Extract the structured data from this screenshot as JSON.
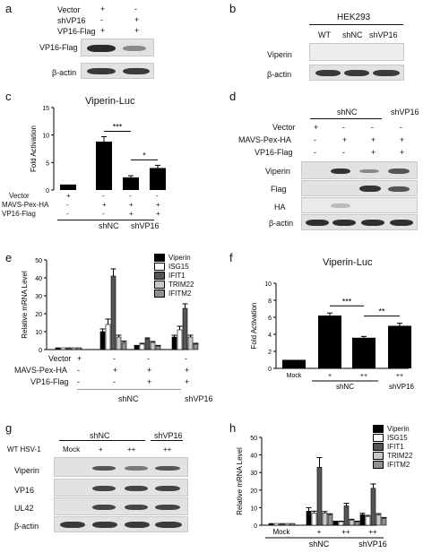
{
  "panels": {
    "a": {
      "letter": "a",
      "rows": [
        {
          "label": "Vector",
          "signs": [
            "+",
            "-"
          ]
        },
        {
          "label": "shVP16",
          "signs": [
            "-",
            "+"
          ]
        },
        {
          "label": "VP16-Flag",
          "signs": [
            "+",
            "+"
          ]
        }
      ],
      "blots": [
        "VP16-Flag",
        "β-actin"
      ]
    },
    "b": {
      "letter": "b",
      "cell_line": "HEK293",
      "lanes": [
        "WT",
        "shNC",
        "shVP16"
      ],
      "blots": [
        "Viperin",
        "β-actin"
      ]
    },
    "c": {
      "letter": "c",
      "title": "Viperin-Luc",
      "ylabel": "Fold Activation",
      "yticks": [
        "0",
        "5",
        "10",
        "15"
      ],
      "rows": [
        {
          "label": "Vector",
          "signs": [
            "+",
            "-",
            "-",
            "-"
          ]
        },
        {
          "label": "MAVS-Pex-HA",
          "signs": [
            "-",
            "+",
            "+",
            "+"
          ]
        },
        {
          "label": "VP16-Flag",
          "signs": [
            "-",
            "-",
            "+",
            "+"
          ]
        }
      ],
      "groups": [
        "shNC",
        "shVP16"
      ],
      "sig": [
        "***",
        "*"
      ]
    },
    "d": {
      "letter": "d",
      "groups": [
        "shNC",
        "shVP16"
      ],
      "rows": [
        {
          "label": "Vector",
          "signs": [
            "+",
            "-",
            "-",
            "-"
          ]
        },
        {
          "label": "MAVS-Pex-HA",
          "signs": [
            "-",
            "+",
            "+",
            "+"
          ]
        },
        {
          "label": "VP16-Flag",
          "signs": [
            "-",
            "-",
            "+",
            "+"
          ]
        }
      ],
      "blots": [
        "Viperin",
        "Flag",
        "HA",
        "β-actin"
      ]
    },
    "e": {
      "letter": "e",
      "ylabel": "Relative mRNA Level",
      "yticks": [
        "0",
        "10",
        "20",
        "30",
        "40",
        "50"
      ],
      "rows": [
        {
          "label": "Vector",
          "signs": [
            "+",
            "-",
            "-",
            "-"
          ]
        },
        {
          "label": "MAVS-Pex-HA",
          "signs": [
            "-",
            "+",
            "+",
            "+"
          ]
        },
        {
          "label": "VP16-Flag",
          "signs": [
            "-",
            "-",
            "+",
            "+"
          ]
        }
      ],
      "groups": [
        "shNC",
        "shVP16"
      ]
    },
    "f": {
      "letter": "f",
      "title": "Viperin-Luc",
      "ylabel": "Fold Activation",
      "yticks": [
        "0",
        "2",
        "4",
        "6",
        "8",
        "10"
      ],
      "sig": [
        "***",
        "**"
      ]
    },
    "g": {
      "letter": "g",
      "row_label": "WT HSV-1",
      "groups": [
        "shNC",
        "shVP16"
      ],
      "lanes": [
        "Mock",
        "+",
        "++",
        "++"
      ],
      "blots": [
        "Viperin",
        "VP16",
        "UL42",
        "β-actin"
      ]
    },
    "h": {
      "letter": "h",
      "ylabel": "Relative mRNA Level",
      "yticks": [
        "0",
        "10",
        "20",
        "30",
        "40",
        "50"
      ],
      "xlabels": [
        "Mock",
        "+",
        "++",
        "++"
      ],
      "groups": [
        "shNC",
        "shVP16"
      ]
    }
  },
  "chart_data": [
    {
      "id": "c",
      "type": "bar",
      "title": "Viperin-Luc",
      "ylabel": "Fold Activation",
      "ylim": [
        0,
        15
      ],
      "values": [
        1,
        8.8,
        2.3,
        4.0
      ],
      "errors": [
        0,
        0.9,
        0.3,
        0.5
      ],
      "color": "#000000"
    },
    {
      "id": "e",
      "type": "bar",
      "ylabel": "Relative mRNA Level",
      "ylim": [
        0,
        50
      ],
      "legend": [
        "Viperin",
        "ISG15",
        "IFIT1",
        "TRIM22",
        "IFITM2"
      ],
      "colors": [
        "#000000",
        "#ffffff",
        "#555555",
        "#c8c8c8",
        "#909090"
      ],
      "series": [
        {
          "name": "Viperin",
          "values": [
            1,
            10,
            2,
            7
          ]
        },
        {
          "name": "ISG15",
          "values": [
            1,
            14,
            3,
            11
          ]
        },
        {
          "name": "IFIT1",
          "values": [
            1,
            41,
            6,
            23
          ]
        },
        {
          "name": "TRIM22",
          "values": [
            1,
            7,
            4,
            7
          ]
        },
        {
          "name": "IFITM2",
          "values": [
            1,
            4,
            2,
            3
          ]
        }
      ],
      "errors": [
        [
          0,
          1.5,
          0.3,
          1.0
        ],
        [
          0,
          3.0,
          0.5,
          2.0
        ],
        [
          0,
          4.0,
          0.5,
          2.5
        ],
        [
          0,
          1.0,
          0.5,
          1.0
        ],
        [
          0,
          0.7,
          0.3,
          0.5
        ]
      ]
    },
    {
      "id": "f",
      "type": "bar",
      "title": "Viperin-Luc",
      "ylabel": "Fold Activation",
      "categories": [
        "Mock",
        "+",
        "++",
        "++"
      ],
      "groups": [
        "shNC",
        "shVP16"
      ],
      "ylim": [
        0,
        10
      ],
      "values": [
        1,
        6.2,
        3.6,
        5.0
      ],
      "errors": [
        0,
        0.3,
        0.15,
        0.3
      ],
      "color": "#000000"
    },
    {
      "id": "h",
      "type": "bar",
      "ylabel": "Relative mRNA Level",
      "ylim": [
        0,
        50
      ],
      "categories": [
        "Mock",
        "+",
        "++",
        "++"
      ],
      "legend": [
        "Viperin",
        "ISG15",
        "IFIT1",
        "TRIM22",
        "IFITM2"
      ],
      "colors": [
        "#000000",
        "#ffffff",
        "#555555",
        "#c8c8c8",
        "#909090"
      ],
      "series": [
        {
          "name": "Viperin",
          "values": [
            1,
            8,
            2,
            6
          ]
        },
        {
          "name": "ISG15",
          "values": [
            1,
            7,
            2,
            5
          ]
        },
        {
          "name": "IFIT1",
          "values": [
            1,
            33,
            11,
            21
          ]
        },
        {
          "name": "TRIM22",
          "values": [
            1,
            7,
            3,
            6
          ]
        },
        {
          "name": "IFITM2",
          "values": [
            1,
            6,
            2,
            4
          ]
        }
      ],
      "errors": [
        [
          0,
          2.0,
          0.3,
          0.8
        ],
        [
          0,
          1.0,
          0.3,
          0.6
        ],
        [
          0,
          5.5,
          1.5,
          2.5
        ],
        [
          0,
          0.8,
          0.4,
          0.6
        ],
        [
          0,
          0.5,
          0.3,
          0.4
        ]
      ]
    }
  ]
}
